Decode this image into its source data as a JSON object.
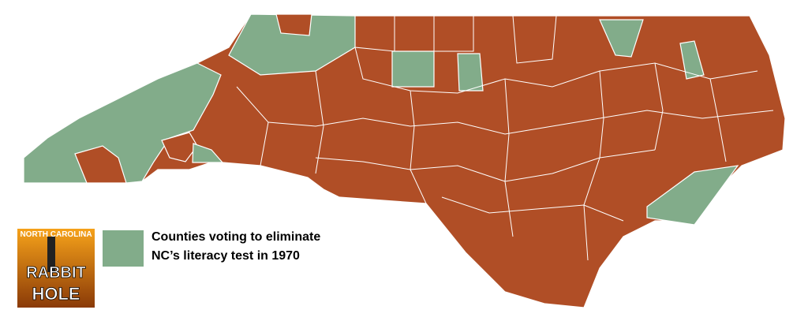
{
  "legend": {
    "label_line1": "Counties voting to eliminate",
    "label_line2": "NC’s literacy test in 1970"
  },
  "logo": {
    "top": "NORTH CAROLINA",
    "line1": "RABBIT",
    "line2": "HOLE"
  }
}
